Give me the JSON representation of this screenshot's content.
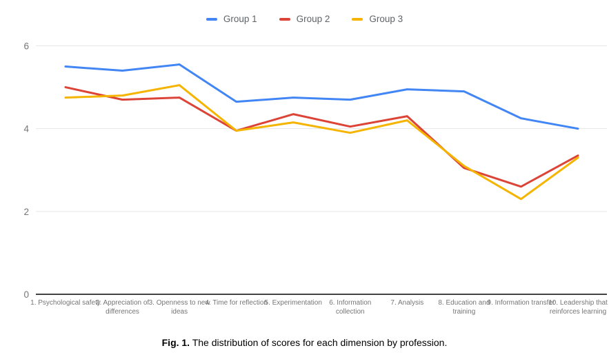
{
  "chart_data": {
    "type": "line",
    "title": "",
    "xlabel": "",
    "ylabel": "",
    "ylim": [
      0,
      6
    ],
    "yticks": [
      0,
      2,
      4,
      6
    ],
    "grid": "horizontal",
    "legend_position": "top",
    "categories": [
      "1. Psychological safety",
      "2. Appreciation of differences",
      "3. Openness to new ideas",
      "4. Time for reflection",
      "5. Experimentation",
      "6. Information collection",
      "7. Analysis",
      "8. Education and training",
      "9. Information transfer",
      "10. Leadership that reinforces learning"
    ],
    "series": [
      {
        "name": "Group 1",
        "color": "#4285f4",
        "values": [
          5.5,
          5.4,
          5.55,
          4.65,
          4.75,
          4.7,
          4.95,
          4.9,
          4.25,
          4.0
        ]
      },
      {
        "name": "Group 2",
        "color": "#db4437",
        "values": [
          5.0,
          4.7,
          4.75,
          3.95,
          4.35,
          4.05,
          4.3,
          3.05,
          2.6,
          3.35
        ]
      },
      {
        "name": "Group 3",
        "color": "#f4b400",
        "values": [
          4.75,
          4.8,
          5.05,
          3.95,
          4.15,
          3.9,
          4.2,
          3.1,
          2.3,
          3.3
        ]
      }
    ],
    "colors": {
      "gridline": "#e6e6e6",
      "baseline": "#424242",
      "tick_label": "#757575",
      "category_label": "#757575",
      "legend_label": "#5f6368"
    }
  },
  "caption": {
    "prefix": "Fig. 1.",
    "text": "The distribution of scores for each dimension by profession."
  }
}
